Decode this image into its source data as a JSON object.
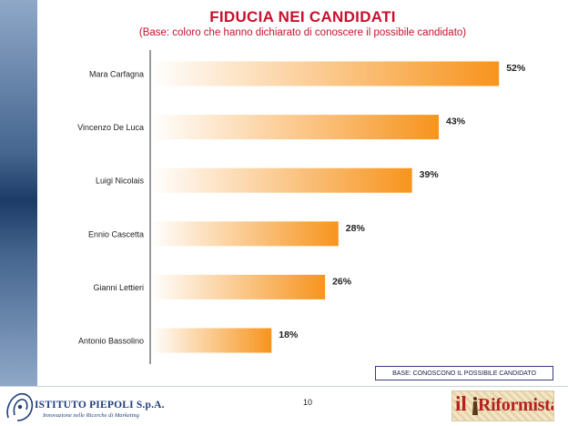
{
  "header": {
    "title": "FIDUCIA NEI CANDIDATI",
    "subtitle": "(Base: coloro che hanno dichiarato di conoscere il possibile candidato)"
  },
  "chart_data": {
    "type": "bar",
    "orientation": "horizontal",
    "categories": [
      "Mara Carfagna",
      "Vincenzo De Luca",
      "Luigi Nicolais",
      "Ennio Cascetta",
      "Gianni Lettieri",
      "Antonio Bassolino"
    ],
    "values": [
      52,
      43,
      39,
      28,
      26,
      18
    ],
    "value_labels": [
      "52%",
      "43%",
      "39%",
      "28%",
      "26%",
      "18%"
    ],
    "unit": "%",
    "xlim": [
      0,
      60
    ],
    "grid": false,
    "legend": "none",
    "bar_color_start": "#ffffff",
    "bar_color_end": "#f7941d"
  },
  "base_note": "BASE: CONOSCONO IL POSSIBILE CANDIDATO",
  "footer": {
    "page_number": "10",
    "institute_name": "ISTITUTO PIEPOLI S.p.A.",
    "institute_tagline": "Innovazione nelle Ricerche di Marketing",
    "newspaper_il": "il",
    "newspaper_name": "Riformista"
  },
  "colors": {
    "title": "#c8102e",
    "side_band": "#1c3b66",
    "logo_blue": "#1f3d7a",
    "newspaper_red": "#b52020"
  }
}
